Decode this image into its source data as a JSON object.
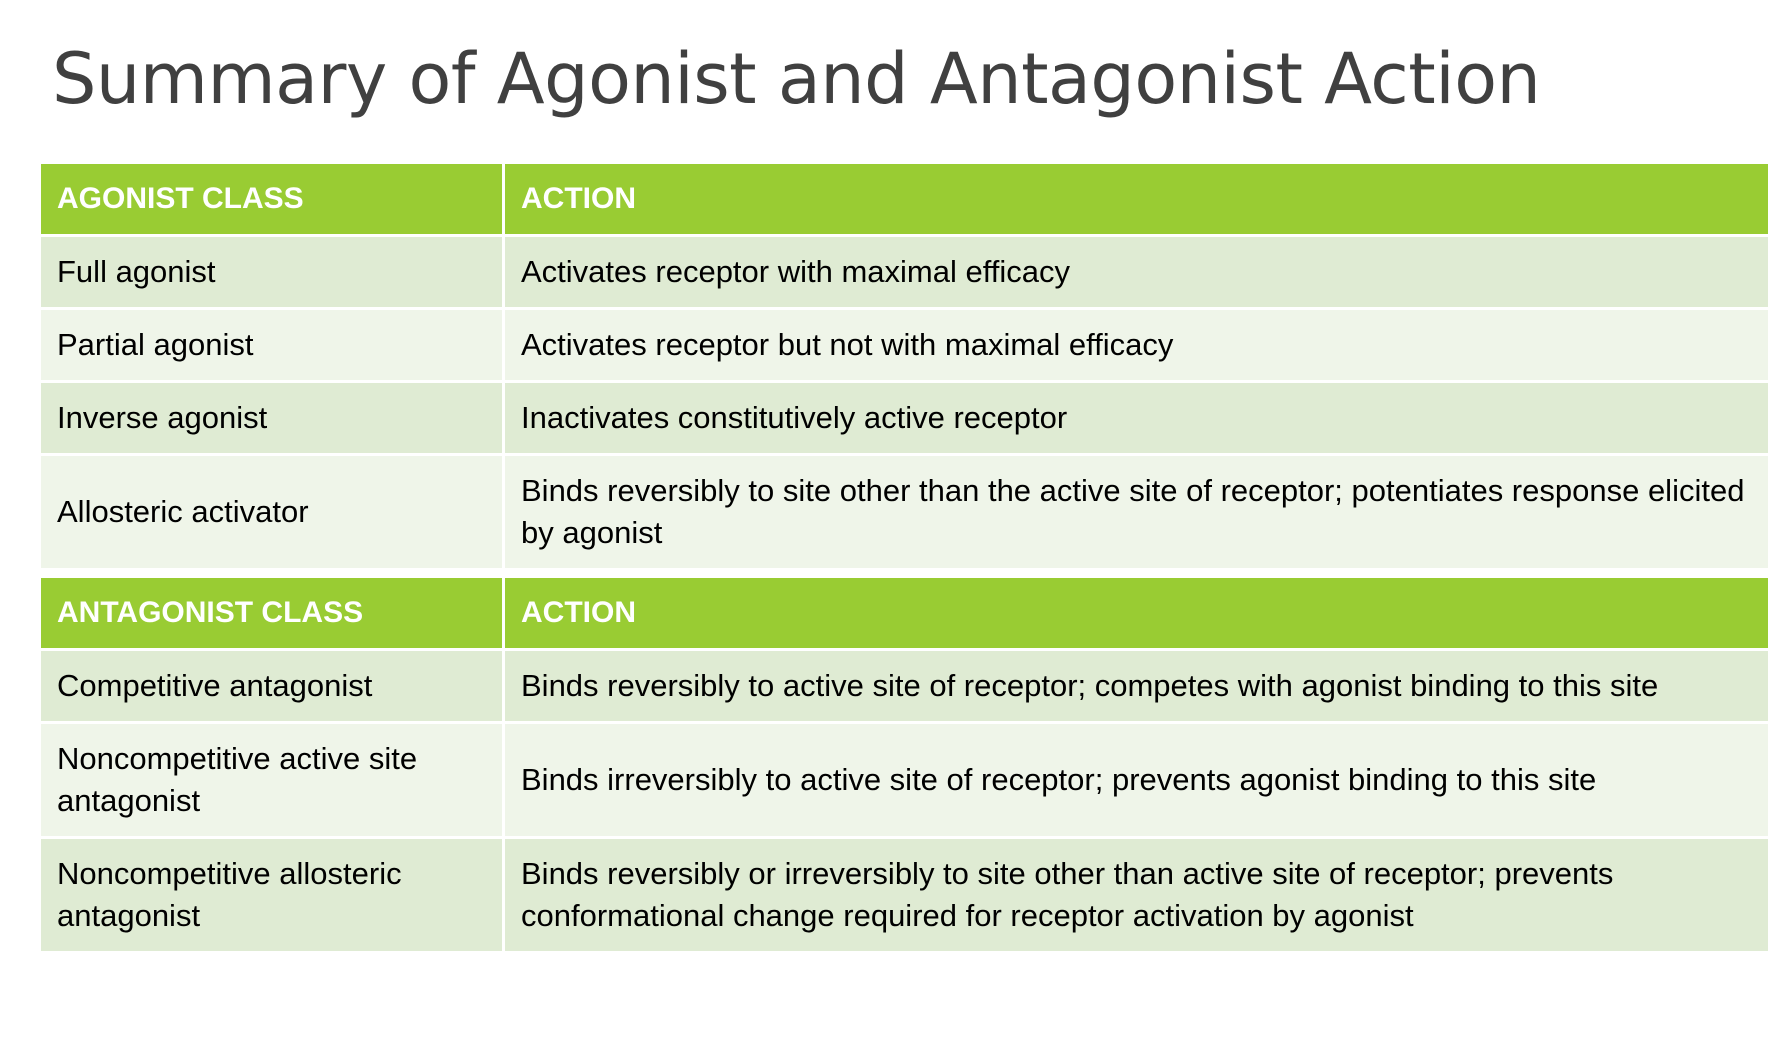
{
  "title": "Summary of Agonist and Antagonist Action",
  "agonist_section": {
    "header": {
      "class_label": "AGONIST CLASS",
      "action_label": "ACTION"
    },
    "rows": [
      {
        "class": "Full agonist",
        "action": "Activates receptor with maximal efficacy"
      },
      {
        "class": "Partial agonist",
        "action": "Activates receptor but not with maximal efficacy"
      },
      {
        "class": "Inverse agonist",
        "action": "Inactivates constitutively active receptor"
      },
      {
        "class": "Allosteric activator",
        "action": "Binds reversibly to site other than the active site of receptor; potentiates response elicited by agonist"
      }
    ]
  },
  "antagonist_section": {
    "header": {
      "class_label": "ANTAGONIST CLASS",
      "action_label": "ACTION"
    },
    "rows": [
      {
        "class": "Competitive antagonist",
        "action": "Binds reversibly to active site of receptor; competes with agonist binding to this site"
      },
      {
        "class": "Noncompetitive active site antagonist",
        "action": "Binds irreversibly to active site of receptor; prevents agonist binding to this site"
      },
      {
        "class": "Noncompetitive allosteric antagonist",
        "action": "Binds reversibly or irreversibly to site other than active site of receptor; prevents conformational change required for receptor activation by agonist"
      }
    ]
  },
  "colors": {
    "header_green": "#99cc33",
    "row_dark": "#dfebd3",
    "row_light": "#eff5e9",
    "title_gray": "#404040"
  }
}
